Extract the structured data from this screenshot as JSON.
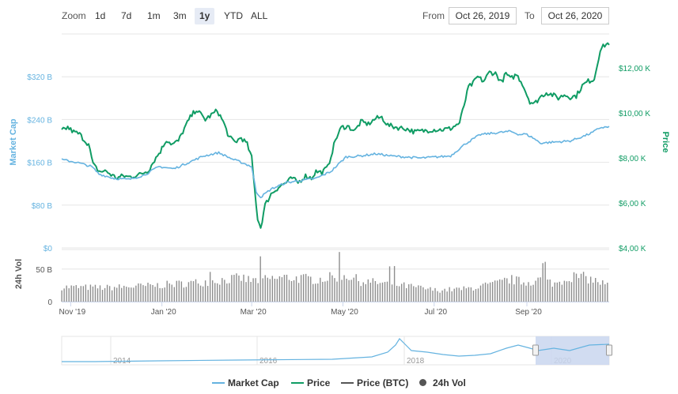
{
  "toolbar": {
    "zoom_label": "Zoom",
    "zoom_buttons": [
      "1d",
      "7d",
      "1m",
      "3m",
      "1y",
      "YTD",
      "ALL"
    ],
    "active_zoom": "1y",
    "from_label": "From",
    "from_value": "Oct 26, 2019",
    "to_label": "To",
    "to_value": "Oct 26, 2020"
  },
  "chart_data": {
    "type": "line",
    "colors": {
      "market_cap": "#65b3e0",
      "price": "#109c64",
      "price_btc": "#555555",
      "volume": "#8e8e8e",
      "navigator_fill": "#c9d6ef"
    },
    "left_axis": {
      "label": "Market Cap",
      "ticks": [
        "$0",
        "$80 B",
        "$160 B",
        "$240 B",
        "$320 B"
      ],
      "tick_values": [
        0,
        80,
        160,
        240,
        320
      ],
      "range": [
        0,
        400
      ]
    },
    "right_axis": {
      "label": "Price",
      "ticks": [
        "$4,00 K",
        "$6,00 K",
        "$8,00 K",
        "$10,00 K",
        "$12,00 K"
      ],
      "tick_values": [
        4000,
        6000,
        8000,
        10000,
        12000
      ],
      "range": [
        4000,
        13500
      ]
    },
    "volume_axis": {
      "label": "24h Vol",
      "ticks": [
        "0",
        "50 B"
      ],
      "tick_values": [
        0,
        50
      ],
      "range": [
        0,
        80
      ]
    },
    "x_ticks": [
      "Nov '19",
      "Jan '20",
      "Mar '20",
      "May '20",
      "Jul '20",
      "Sep '20"
    ],
    "x_tick_days": [
      6,
      67,
      127,
      188,
      249,
      311
    ],
    "x_range_days": [
      0,
      366
    ],
    "grid": true,
    "series": [
      {
        "name": "Price",
        "unit": "USD",
        "x_days": [
          0,
          4,
          8,
          12,
          15,
          18,
          21,
          25,
          30,
          33,
          37,
          41,
          45,
          52,
          58,
          62,
          66,
          70,
          74,
          78,
          82,
          86,
          90,
          96,
          100,
          104,
          108,
          112,
          116,
          120,
          124,
          127,
          129,
          131,
          133,
          136,
          140,
          145,
          150,
          154,
          158,
          163,
          167,
          170,
          174,
          178,
          183,
          187,
          191,
          196,
          200,
          205,
          210,
          214,
          218,
          224,
          230,
          236,
          242,
          248,
          254,
          260,
          266,
          270,
          272,
          275,
          278,
          282,
          286,
          290,
          294,
          297,
          300,
          304,
          308,
          311,
          313,
          316,
          320,
          324,
          328,
          332,
          336,
          340,
          344,
          348,
          352,
          356,
          360,
          363,
          366
        ],
        "values": [
          9200,
          9350,
          9150,
          9050,
          8800,
          8600,
          7700,
          7400,
          7400,
          7250,
          7100,
          7200,
          7150,
          7250,
          7450,
          7900,
          8300,
          8800,
          8600,
          8750,
          9300,
          9800,
          10150,
          9700,
          9900,
          10100,
          9600,
          8900,
          8700,
          8900,
          8600,
          8000,
          6600,
          5300,
          4900,
          5900,
          6400,
          6700,
          6900,
          7100,
          6900,
          7200,
          7100,
          7400,
          7350,
          7600,
          8800,
          9350,
          9400,
          9200,
          9600,
          9500,
          9750,
          9800,
          9450,
          9350,
          9300,
          9150,
          9200,
          9250,
          9250,
          9300,
          9550,
          10600,
          11150,
          11300,
          11600,
          11400,
          11800,
          11750,
          11350,
          11750,
          11500,
          11700,
          11300,
          10800,
          10500,
          10400,
          10700,
          10900,
          10800,
          10650,
          10800,
          10700,
          10750,
          11200,
          11400,
          11500,
          12800,
          13000,
          13100
        ]
      },
      {
        "name": "Market Cap",
        "unit": "B USD",
        "x_days": [
          0,
          10,
          20,
          25,
          35,
          45,
          55,
          65,
          75,
          85,
          95,
          105,
          115,
          120,
          127,
          130,
          133,
          140,
          150,
          160,
          170,
          180,
          190,
          200,
          210,
          220,
          230,
          240,
          250,
          260,
          270,
          280,
          290,
          300,
          306,
          310,
          315,
          320,
          330,
          340,
          350,
          355,
          360,
          366
        ],
        "values": [
          165,
          160,
          152,
          138,
          130,
          128,
          136,
          152,
          148,
          160,
          172,
          178,
          165,
          160,
          152,
          105,
          95,
          110,
          122,
          126,
          130,
          143,
          170,
          172,
          176,
          172,
          170,
          168,
          170,
          172,
          195,
          212,
          215,
          218,
          212,
          213,
          206,
          196,
          198,
          200,
          210,
          216,
          225,
          226
        ]
      },
      {
        "name": "Price (BTC)",
        "values": []
      },
      {
        "name": "24h Vol",
        "unit": "B USD",
        "x_days": [
          0,
          30,
          60,
          90,
          120,
          127,
          150,
          170,
          180,
          190,
          200,
          220,
          250,
          270,
          290,
          300,
          310,
          320,
          330,
          340,
          350,
          360,
          366
        ],
        "values": [
          23,
          22,
          25,
          30,
          37,
          33,
          38,
          35,
          38,
          42,
          32,
          28,
          18,
          20,
          28,
          35,
          30,
          35,
          28,
          40,
          38,
          30,
          25
        ]
      }
    ],
    "legend": {
      "placement": "bottom",
      "entries": [
        "Market Cap",
        "Price",
        "Price (BTC)",
        "24h Vol"
      ]
    },
    "navigator": {
      "year_labels": [
        "2014",
        "2016",
        "2018",
        "2020"
      ],
      "selected_range": "Oct 26, 2019 – Oct 26, 2020"
    }
  }
}
